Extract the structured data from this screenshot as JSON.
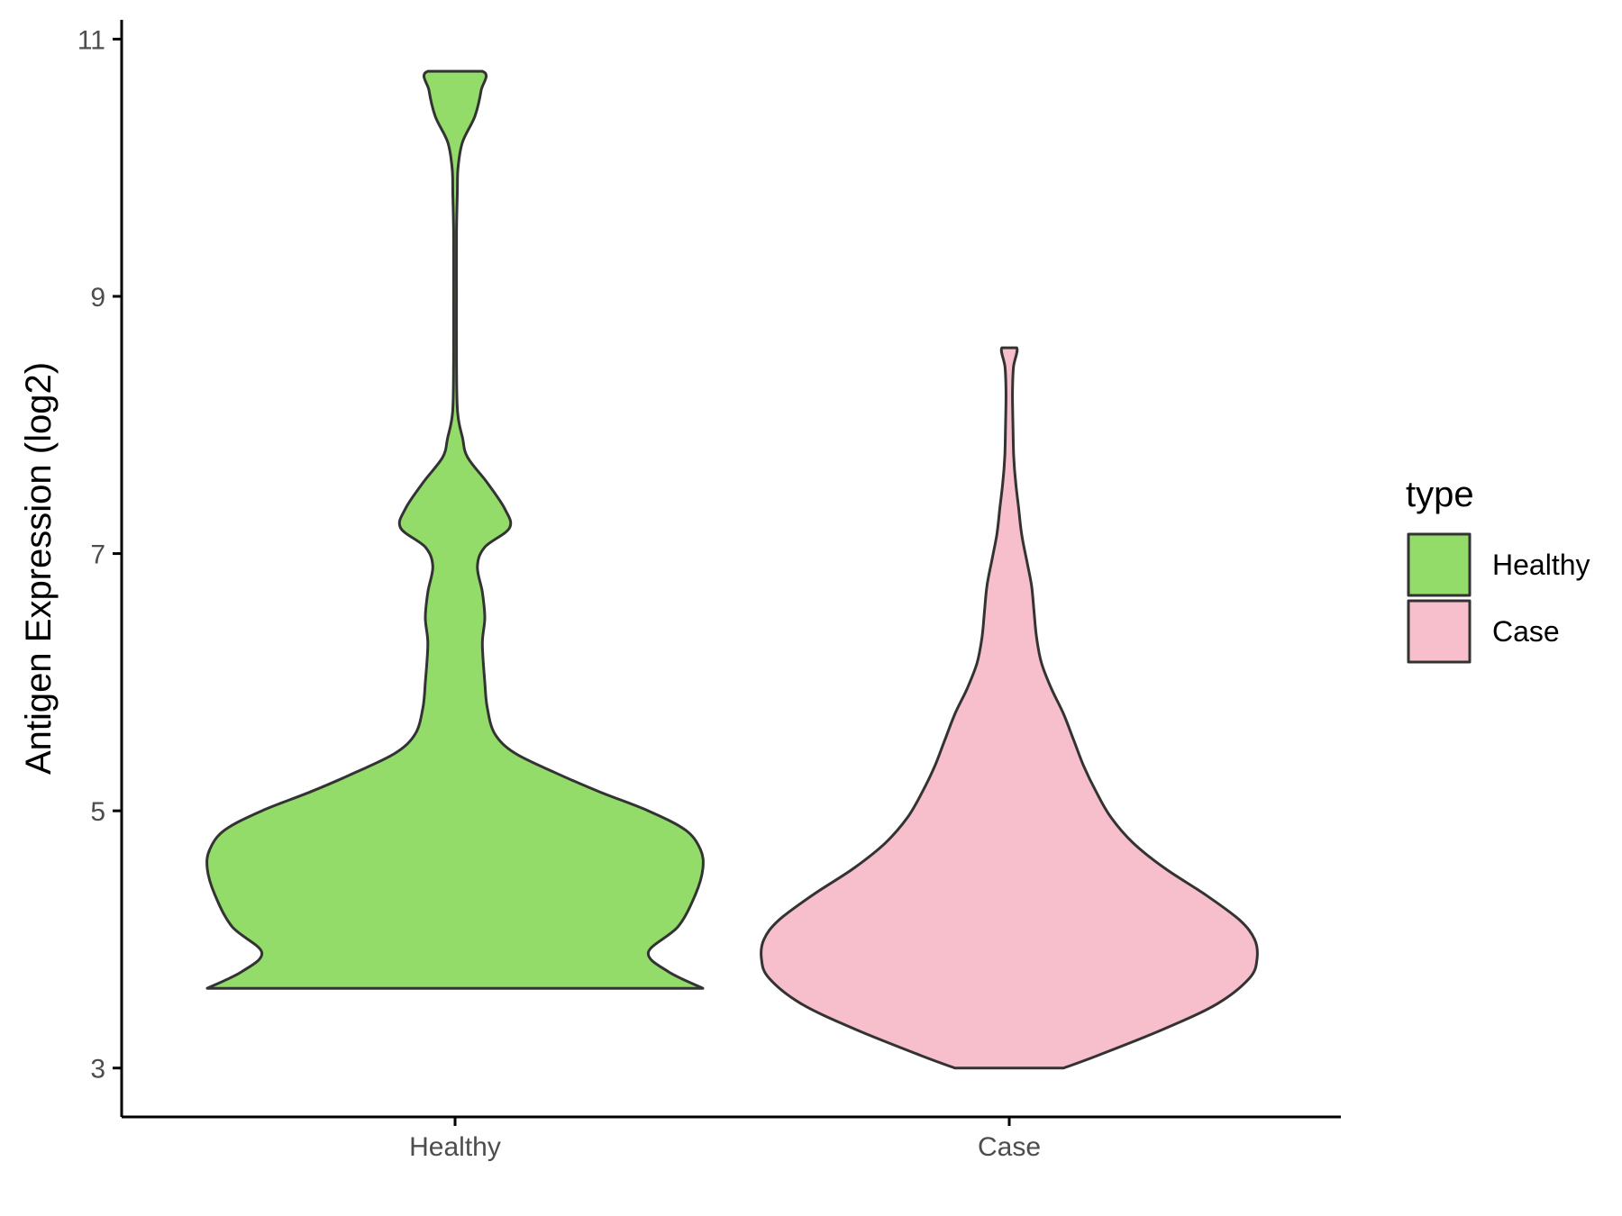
{
  "chart_data": {
    "type": "violin",
    "title": "",
    "xlabel": "",
    "ylabel": "Antigen Expression (log2)",
    "ylim": [
      2.62,
      11.15
    ],
    "yticks": [
      3,
      5,
      7,
      9,
      11
    ],
    "categories": [
      "Healthy",
      "Case"
    ],
    "legend": {
      "title": "type",
      "position": "right",
      "items": [
        {
          "label": "Healthy",
          "color": "#93dc6a"
        },
        {
          "label": "Case",
          "color": "#f7bfcb"
        }
      ]
    },
    "grid": false,
    "series": [
      {
        "name": "Healthy",
        "color": "#93dc6a",
        "min": 3.62,
        "max": 10.75,
        "density": [
          [
            3.62,
            1.0
          ],
          [
            3.75,
            0.86
          ],
          [
            3.9,
            0.78
          ],
          [
            4.1,
            0.9
          ],
          [
            4.35,
            0.97
          ],
          [
            4.55,
            1.0
          ],
          [
            4.7,
            0.99
          ],
          [
            4.85,
            0.93
          ],
          [
            5.0,
            0.78
          ],
          [
            5.15,
            0.58
          ],
          [
            5.3,
            0.4
          ],
          [
            5.45,
            0.24
          ],
          [
            5.6,
            0.16
          ],
          [
            5.8,
            0.13
          ],
          [
            6.0,
            0.12
          ],
          [
            6.3,
            0.11
          ],
          [
            6.5,
            0.12
          ],
          [
            6.7,
            0.11
          ],
          [
            6.9,
            0.09
          ],
          [
            7.05,
            0.12
          ],
          [
            7.2,
            0.22
          ],
          [
            7.35,
            0.2
          ],
          [
            7.55,
            0.13
          ],
          [
            7.75,
            0.05
          ],
          [
            7.9,
            0.03
          ],
          [
            8.1,
            0.01
          ],
          [
            8.5,
            0.006
          ],
          [
            9.0,
            0.006
          ],
          [
            9.5,
            0.006
          ],
          [
            9.8,
            0.009
          ],
          [
            10.0,
            0.012
          ],
          [
            10.2,
            0.03
          ],
          [
            10.4,
            0.08
          ],
          [
            10.6,
            0.105
          ],
          [
            10.75,
            0.11
          ]
        ]
      },
      {
        "name": "Case",
        "color": "#f7bfcb",
        "min": 3.0,
        "max": 8.6,
        "density": [
          [
            3.0,
            0.22
          ],
          [
            3.1,
            0.36
          ],
          [
            3.3,
            0.62
          ],
          [
            3.5,
            0.84
          ],
          [
            3.7,
            0.97
          ],
          [
            3.85,
            1.0
          ],
          [
            4.0,
            0.99
          ],
          [
            4.15,
            0.93
          ],
          [
            4.35,
            0.79
          ],
          [
            4.55,
            0.63
          ],
          [
            4.75,
            0.5
          ],
          [
            4.95,
            0.41
          ],
          [
            5.15,
            0.35
          ],
          [
            5.35,
            0.3
          ],
          [
            5.55,
            0.26
          ],
          [
            5.75,
            0.22
          ],
          [
            5.95,
            0.17
          ],
          [
            6.15,
            0.13
          ],
          [
            6.35,
            0.11
          ],
          [
            6.55,
            0.1
          ],
          [
            6.75,
            0.09
          ],
          [
            6.95,
            0.07
          ],
          [
            7.15,
            0.05
          ],
          [
            7.35,
            0.038
          ],
          [
            7.55,
            0.026
          ],
          [
            7.75,
            0.018
          ],
          [
            8.0,
            0.015
          ],
          [
            8.25,
            0.013
          ],
          [
            8.45,
            0.017
          ],
          [
            8.6,
            0.03
          ]
        ]
      }
    ]
  }
}
